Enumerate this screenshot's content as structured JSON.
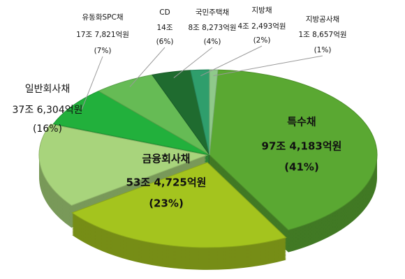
{
  "chart_data": {
    "type": "pie3d",
    "categories": [
      "특수채",
      "금융회사채",
      "일반회사채",
      "유동화SPC채",
      "CD",
      "국민주택채",
      "지방채",
      "지방공사채"
    ],
    "values": [
      974183,
      534725,
      376304,
      177821,
      140000,
      88273,
      42493,
      18657
    ],
    "value_labels": [
      "97조 4,183억원",
      "53조 4,725억원",
      "37조 6,304억원",
      "17조 7,821억원",
      "14조",
      "8조 8,273억원",
      "4조 2,493억원",
      "1조 8,657억원"
    ],
    "percents": [
      41,
      23,
      16,
      7,
      6,
      4,
      2,
      1
    ],
    "percent_labels": [
      "(41%)",
      "(23%)",
      "(16%)",
      "(7%)",
      "(6%)",
      "(4%)",
      "(2%)",
      "(1%)"
    ],
    "colors": [
      "#5aa832",
      "#a4c41e",
      "#a8d47c",
      "#22b03c",
      "#66bb55",
      "#1f6b2f",
      "#2f9e6c",
      "#8fc98a"
    ]
  }
}
